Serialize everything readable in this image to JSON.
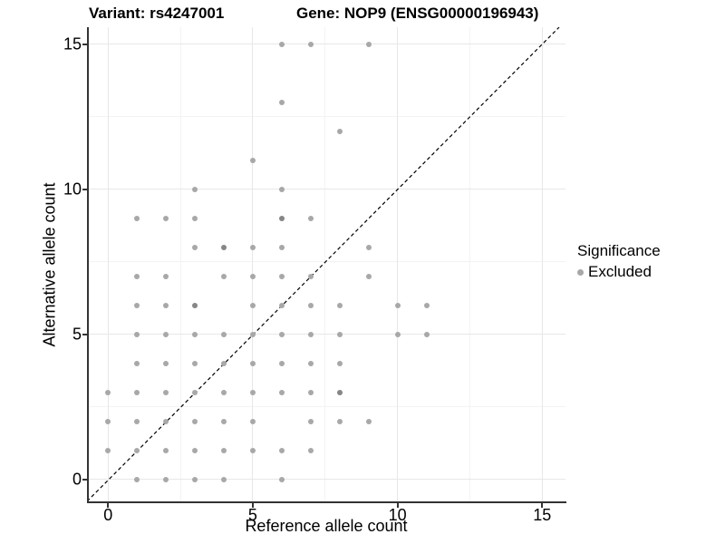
{
  "titles": {
    "variant": "Variant: rs4247001",
    "gene": "Gene: NOP9 (ENSG00000196943)"
  },
  "chart_data": {
    "type": "scatter",
    "xlabel": "Reference allele count",
    "ylabel": "Alternative allele count",
    "x_ticks": [
      0,
      5,
      10,
      15
    ],
    "y_ticks": [
      0,
      5,
      10,
      15
    ],
    "minor_ticks": [
      2.5,
      7.5,
      12.5
    ],
    "xlim": [
      -0.73,
      15.85
    ],
    "ylim": [
      -0.76,
      15.59
    ],
    "grid": "major-and-minor-on",
    "identity_line": {
      "type": "y=x",
      "style": "dashed",
      "color": "#000000"
    },
    "point_color": "#a8a8a8",
    "point_color_overlap": "#868686",
    "points": [
      {
        "x": 6,
        "y": 15,
        "n": 1
      },
      {
        "x": 7,
        "y": 15,
        "n": 1
      },
      {
        "x": 9,
        "y": 15,
        "n": 1
      },
      {
        "x": 6,
        "y": 13,
        "n": 1
      },
      {
        "x": 8,
        "y": 12,
        "n": 1
      },
      {
        "x": 5,
        "y": 11,
        "n": 1
      },
      {
        "x": 3,
        "y": 10,
        "n": 1
      },
      {
        "x": 6,
        "y": 10,
        "n": 1
      },
      {
        "x": 1,
        "y": 9,
        "n": 1
      },
      {
        "x": 2,
        "y": 9,
        "n": 1
      },
      {
        "x": 3,
        "y": 9,
        "n": 1
      },
      {
        "x": 6,
        "y": 9,
        "n": 2
      },
      {
        "x": 7,
        "y": 9,
        "n": 1
      },
      {
        "x": 3,
        "y": 8,
        "n": 1
      },
      {
        "x": 4,
        "y": 8,
        "n": 2
      },
      {
        "x": 5,
        "y": 8,
        "n": 1
      },
      {
        "x": 6,
        "y": 8,
        "n": 1
      },
      {
        "x": 9,
        "y": 8,
        "n": 1
      },
      {
        "x": 1,
        "y": 7,
        "n": 1
      },
      {
        "x": 2,
        "y": 7,
        "n": 1
      },
      {
        "x": 4,
        "y": 7,
        "n": 1
      },
      {
        "x": 5,
        "y": 7,
        "n": 1
      },
      {
        "x": 6,
        "y": 7,
        "n": 1
      },
      {
        "x": 7,
        "y": 7,
        "n": 1
      },
      {
        "x": 9,
        "y": 7,
        "n": 1
      },
      {
        "x": 1,
        "y": 6,
        "n": 1
      },
      {
        "x": 2,
        "y": 6,
        "n": 1
      },
      {
        "x": 3,
        "y": 6,
        "n": 2
      },
      {
        "x": 5,
        "y": 6,
        "n": 1
      },
      {
        "x": 6,
        "y": 6,
        "n": 1
      },
      {
        "x": 7,
        "y": 6,
        "n": 1
      },
      {
        "x": 8,
        "y": 6,
        "n": 1
      },
      {
        "x": 10,
        "y": 6,
        "n": 1
      },
      {
        "x": 11,
        "y": 6,
        "n": 1
      },
      {
        "x": 1,
        "y": 5,
        "n": 1
      },
      {
        "x": 2,
        "y": 5,
        "n": 1
      },
      {
        "x": 3,
        "y": 5,
        "n": 1
      },
      {
        "x": 4,
        "y": 5,
        "n": 1
      },
      {
        "x": 5,
        "y": 5,
        "n": 1
      },
      {
        "x": 6,
        "y": 5,
        "n": 1
      },
      {
        "x": 7,
        "y": 5,
        "n": 1
      },
      {
        "x": 8,
        "y": 5,
        "n": 1
      },
      {
        "x": 10,
        "y": 5,
        "n": 1
      },
      {
        "x": 11,
        "y": 5,
        "n": 1
      },
      {
        "x": 1,
        "y": 4,
        "n": 1
      },
      {
        "x": 2,
        "y": 4,
        "n": 1
      },
      {
        "x": 3,
        "y": 4,
        "n": 1
      },
      {
        "x": 4,
        "y": 4,
        "n": 1
      },
      {
        "x": 5,
        "y": 4,
        "n": 1
      },
      {
        "x": 6,
        "y": 4,
        "n": 1
      },
      {
        "x": 7,
        "y": 4,
        "n": 1
      },
      {
        "x": 8,
        "y": 4,
        "n": 1
      },
      {
        "x": 0,
        "y": 3,
        "n": 1
      },
      {
        "x": 1,
        "y": 3,
        "n": 1
      },
      {
        "x": 2,
        "y": 3,
        "n": 1
      },
      {
        "x": 3,
        "y": 3,
        "n": 1
      },
      {
        "x": 4,
        "y": 3,
        "n": 1
      },
      {
        "x": 5,
        "y": 3,
        "n": 1
      },
      {
        "x": 6,
        "y": 3,
        "n": 1
      },
      {
        "x": 7,
        "y": 3,
        "n": 1
      },
      {
        "x": 8,
        "y": 3,
        "n": 2
      },
      {
        "x": 0,
        "y": 2,
        "n": 1
      },
      {
        "x": 1,
        "y": 2,
        "n": 1
      },
      {
        "x": 2,
        "y": 2,
        "n": 1
      },
      {
        "x": 3,
        "y": 2,
        "n": 1
      },
      {
        "x": 4,
        "y": 2,
        "n": 1
      },
      {
        "x": 5,
        "y": 2,
        "n": 1
      },
      {
        "x": 7,
        "y": 2,
        "n": 1
      },
      {
        "x": 8,
        "y": 2,
        "n": 1
      },
      {
        "x": 9,
        "y": 2,
        "n": 1
      },
      {
        "x": 0,
        "y": 1,
        "n": 1
      },
      {
        "x": 1,
        "y": 1,
        "n": 1
      },
      {
        "x": 2,
        "y": 1,
        "n": 1
      },
      {
        "x": 3,
        "y": 1,
        "n": 1
      },
      {
        "x": 4,
        "y": 1,
        "n": 1
      },
      {
        "x": 5,
        "y": 1,
        "n": 1
      },
      {
        "x": 6,
        "y": 1,
        "n": 1
      },
      {
        "x": 7,
        "y": 1,
        "n": 1
      },
      {
        "x": 1,
        "y": 0,
        "n": 1
      },
      {
        "x": 2,
        "y": 0,
        "n": 1
      },
      {
        "x": 3,
        "y": 0,
        "n": 1
      },
      {
        "x": 4,
        "y": 0,
        "n": 1
      },
      {
        "x": 6,
        "y": 0,
        "n": 1
      }
    ],
    "legend": {
      "position": "right",
      "title": "Significance",
      "items": [
        {
          "label": "Excluded",
          "color": "#a8a8a8"
        }
      ]
    }
  }
}
